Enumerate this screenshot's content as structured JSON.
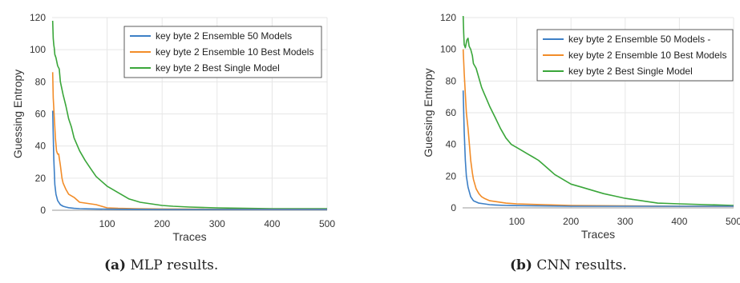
{
  "chart_data": [
    {
      "type": "line",
      "xlabel": "Traces",
      "ylabel": "Guessing Entropy",
      "xlim": [
        0,
        500
      ],
      "ylim": [
        0,
        120
      ],
      "xticks": [
        "100",
        "200",
        "300",
        "400",
        "500"
      ],
      "yticks": [
        "0",
        "20",
        "40",
        "60",
        "80",
        "100",
        "120"
      ],
      "grid": true,
      "legend_position": "top-right",
      "caption_tag": "(a)",
      "caption_text": "MLP results.",
      "series": [
        {
          "name": "key byte 2 Ensemble 50 Models",
          "color": "#3c7fc6",
          "x": [
            1,
            3,
            5,
            7,
            10,
            15,
            20,
            25,
            30,
            40,
            50,
            60,
            80,
            100,
            150,
            200,
            300,
            400,
            500
          ],
          "y": [
            62,
            32,
            16,
            10,
            6,
            3.5,
            2.5,
            2,
            1.6,
            1.2,
            1,
            0.9,
            0.8,
            0.7,
            0.6,
            0.5,
            0.5,
            0.5,
            0.5
          ]
        },
        {
          "name": "key byte 2 Ensemble 10 Best Models",
          "color": "#f28c28",
          "x": [
            1,
            2,
            4,
            6,
            8,
            10,
            12,
            15,
            18,
            20,
            25,
            30,
            35,
            40,
            50,
            60,
            70,
            80,
            90,
            100,
            120,
            150,
            200,
            250,
            300,
            400,
            500
          ],
          "y": [
            86,
            70,
            58,
            45,
            37,
            35,
            35,
            28,
            20,
            17,
            13,
            10,
            9,
            8,
            5,
            4.5,
            4,
            3.5,
            2.5,
            1.5,
            1.2,
            1,
            0.8,
            0.7,
            0.6,
            0.6,
            0.6
          ]
        },
        {
          "name": "key byte 2 Best Single Model",
          "color": "#3aa63a",
          "x": [
            1,
            2,
            3,
            4,
            5,
            7,
            10,
            13,
            15,
            20,
            25,
            30,
            35,
            40,
            50,
            60,
            70,
            80,
            90,
            100,
            110,
            120,
            130,
            140,
            150,
            160,
            170,
            180,
            200,
            220,
            250,
            300,
            350,
            400,
            450,
            500
          ],
          "y": [
            118,
            107,
            103,
            101,
            97,
            95,
            90,
            88,
            80,
            72,
            65,
            57,
            52,
            45,
            37,
            31,
            26,
            21,
            18,
            15,
            13,
            11,
            9,
            7,
            6,
            5,
            4.5,
            4,
            3,
            2.5,
            2,
            1.5,
            1.2,
            1,
            1,
            1
          ]
        }
      ]
    },
    {
      "type": "line",
      "xlabel": "Traces",
      "ylabel": "Guessing Entropy",
      "xlim": [
        0,
        500
      ],
      "ylim": [
        0,
        120
      ],
      "xticks": [
        "100",
        "200",
        "300",
        "400",
        "500"
      ],
      "yticks": [
        "0",
        "20",
        "40",
        "60",
        "80",
        "100",
        "120"
      ],
      "grid": true,
      "legend_position": "top-right",
      "caption_tag": "(b)",
      "caption_text": "CNN results.",
      "series": [
        {
          "name": "key byte 2 Ensemble 50 Models -",
          "color": "#3c7fc6",
          "x": [
            1,
            2,
            3,
            5,
            7,
            10,
            15,
            20,
            30,
            40,
            50,
            60,
            80,
            100,
            150,
            200,
            300,
            400,
            500
          ],
          "y": [
            74,
            60,
            48,
            30,
            20,
            13,
            7,
            4.5,
            3,
            2.5,
            2,
            1.8,
            1.5,
            1.4,
            1.2,
            1,
            1,
            1,
            1
          ]
        },
        {
          "name": "key byte 2 Ensemble 10 Best Models",
          "color": "#f28c28",
          "x": [
            1,
            3,
            5,
            7,
            10,
            13,
            15,
            18,
            20,
            25,
            30,
            35,
            40,
            50,
            60,
            80,
            100,
            150,
            200,
            300,
            400,
            500
          ],
          "y": [
            100,
            85,
            72,
            60,
            50,
            38,
            30,
            22,
            18,
            12,
            9,
            7,
            6,
            4.5,
            4,
            3,
            2.5,
            2,
            1.5,
            1.2,
            1,
            1
          ]
        },
        {
          "name": "key byte 2 Best Single Model",
          "color": "#3aa63a",
          "x": [
            1,
            2,
            3,
            5,
            8,
            10,
            12,
            15,
            18,
            20,
            25,
            30,
            35,
            40,
            45,
            50,
            60,
            70,
            80,
            90,
            100,
            110,
            120,
            130,
            140,
            150,
            160,
            170,
            180,
            190,
            200,
            220,
            240,
            260,
            280,
            300,
            320,
            340,
            360,
            400,
            450,
            500
          ],
          "y": [
            121,
            110,
            103,
            101,
            106,
            107,
            102,
            100,
            96,
            91,
            88,
            82,
            76,
            72,
            68,
            64,
            57,
            50,
            44,
            40,
            38,
            36,
            34,
            32,
            30,
            27,
            24,
            21,
            19,
            17,
            15,
            13,
            11,
            9,
            7.5,
            6,
            5,
            4,
            3,
            2.5,
            2,
            1.5
          ]
        }
      ]
    }
  ]
}
